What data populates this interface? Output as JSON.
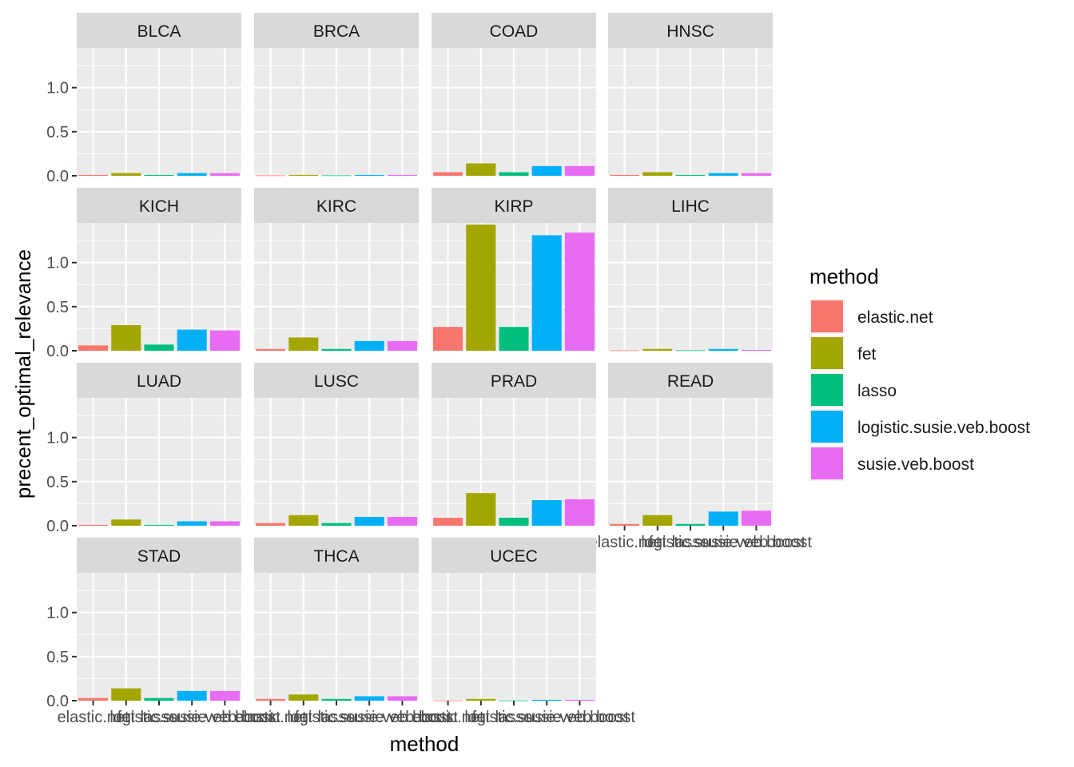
{
  "chart_data": {
    "type": "bar",
    "facet_by": "cancer type",
    "categories": [
      "elastic.net",
      "fet",
      "lasso",
      "logistic.susie.veb.boost",
      "susie.veb.boost"
    ],
    "xlabel": "method",
    "ylabel": "precent_optimal_relevance",
    "ylim": [
      0,
      1.45
    ],
    "y_ticks": [
      "0.0",
      "0.5",
      "1.0"
    ],
    "grid": true,
    "colors": {
      "elastic.net": "#F8766D",
      "fet": "#A3A500",
      "lasso": "#00BF7D",
      "logistic.susie.veb.boost": "#00B0F6",
      "susie.veb.boost": "#E76BF3"
    },
    "legend": {
      "title": "method",
      "position": "right",
      "entries": [
        "elastic.net",
        "fet",
        "lasso",
        "logistic.susie.veb.boost",
        "susie.veb.boost"
      ]
    },
    "facets": [
      {
        "name": "BLCA",
        "values": [
          0.01,
          0.03,
          0.01,
          0.03,
          0.03
        ]
      },
      {
        "name": "BRCA",
        "values": [
          0.005,
          0.01,
          0.005,
          0.01,
          0.01
        ]
      },
      {
        "name": "COAD",
        "values": [
          0.04,
          0.14,
          0.04,
          0.11,
          0.11
        ]
      },
      {
        "name": "HNSC",
        "values": [
          0.01,
          0.04,
          0.01,
          0.03,
          0.03
        ]
      },
      {
        "name": "KICH",
        "values": [
          0.06,
          0.29,
          0.07,
          0.24,
          0.23
        ]
      },
      {
        "name": "KIRC",
        "values": [
          0.02,
          0.15,
          0.02,
          0.11,
          0.11
        ]
      },
      {
        "name": "KIRP",
        "values": [
          0.27,
          1.43,
          0.27,
          1.31,
          1.34
        ]
      },
      {
        "name": "LIHC",
        "values": [
          0.005,
          0.02,
          0.005,
          0.02,
          0.01
        ]
      },
      {
        "name": "LUAD",
        "values": [
          0.01,
          0.07,
          0.01,
          0.05,
          0.05
        ]
      },
      {
        "name": "LUSC",
        "values": [
          0.03,
          0.12,
          0.03,
          0.1,
          0.1
        ]
      },
      {
        "name": "PRAD",
        "values": [
          0.09,
          0.37,
          0.09,
          0.29,
          0.3
        ]
      },
      {
        "name": "READ",
        "values": [
          0.02,
          0.12,
          0.02,
          0.16,
          0.17
        ]
      },
      {
        "name": "STAD",
        "values": [
          0.03,
          0.14,
          0.03,
          0.11,
          0.11
        ]
      },
      {
        "name": "THCA",
        "values": [
          0.02,
          0.07,
          0.02,
          0.05,
          0.05
        ]
      },
      {
        "name": "UCEC",
        "values": [
          0.003,
          0.02,
          0.003,
          0.01,
          0.01
        ]
      }
    ]
  }
}
